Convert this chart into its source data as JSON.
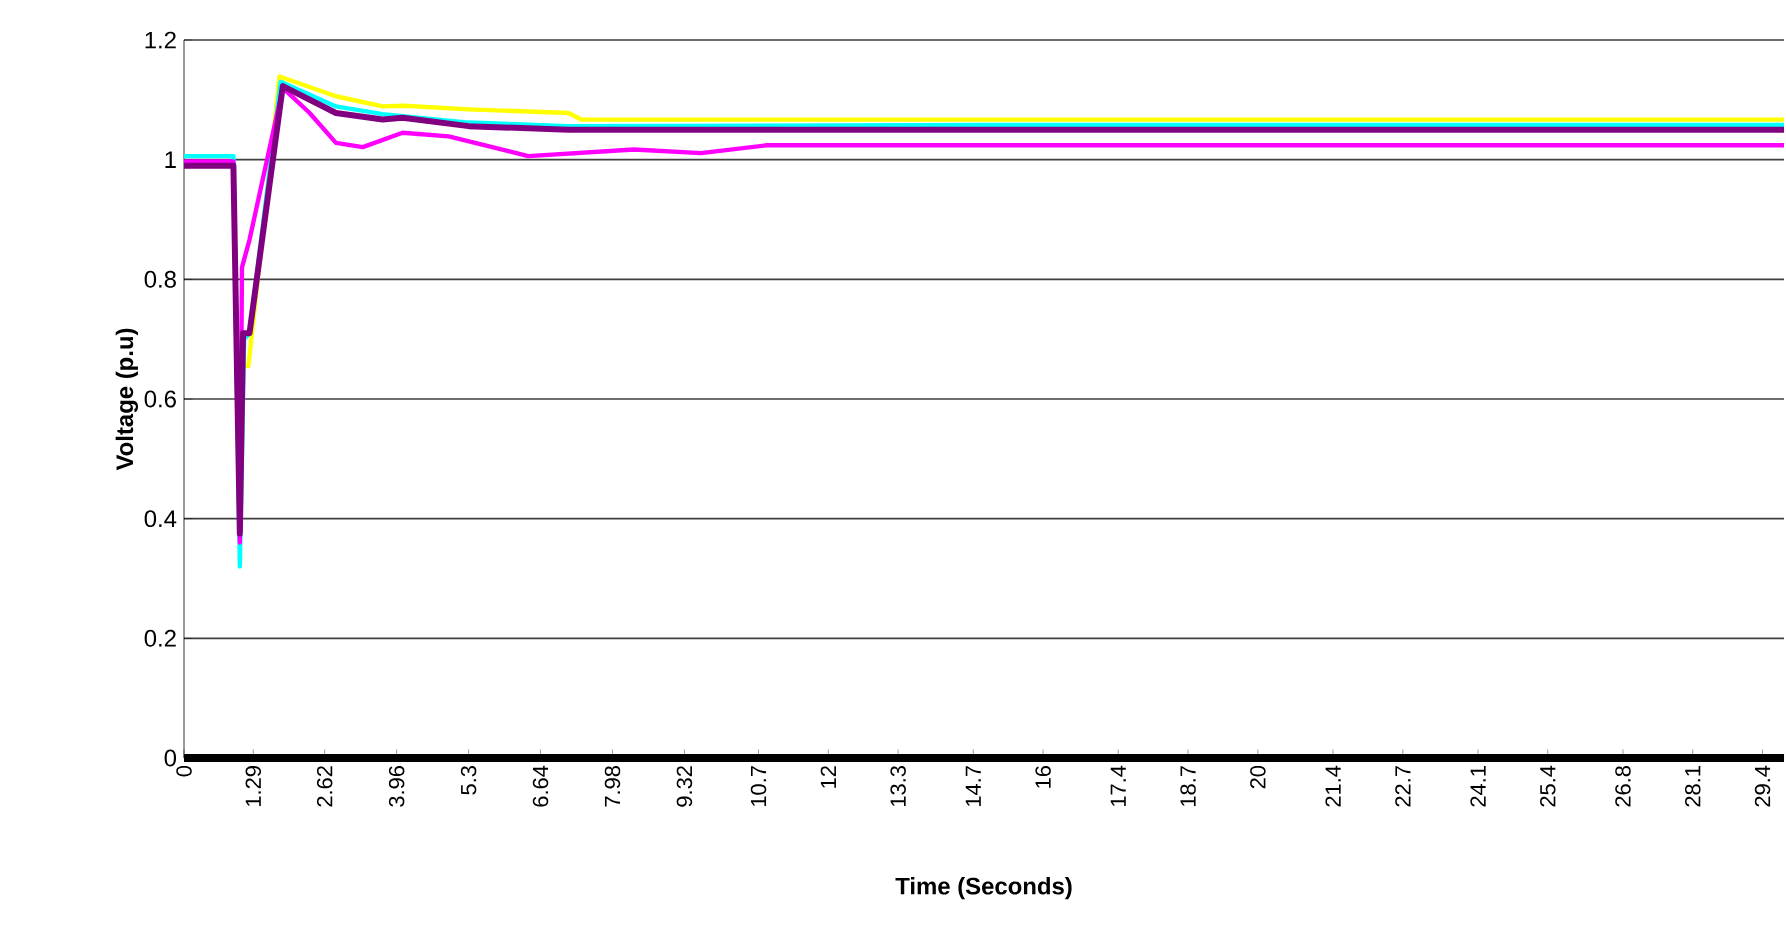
{
  "chart_data": {
    "type": "line",
    "xlabel": "Time (Seconds)",
    "ylabel": "Voltage (p.u)",
    "xlim": [
      0,
      29.8
    ],
    "ylim": [
      0,
      1.2
    ],
    "xticks": [
      0,
      1.29,
      2.62,
      3.96,
      5.3,
      6.64,
      7.98,
      9.32,
      10.7,
      12,
      13.3,
      14.7,
      16,
      17.4,
      18.7,
      20,
      21.4,
      22.7,
      24.1,
      25.4,
      26.8,
      28.1,
      29.4
    ],
    "yticks": [
      0,
      0.2,
      0.4,
      0.6,
      0.8,
      1,
      1.2
    ],
    "grid": "y",
    "marker": "none",
    "line_style": "solid",
    "series": [
      {
        "color": "#ffff00",
        "x": [
          1.12,
          1.2,
          1.78,
          2.83,
          3.7,
          4.1,
          5.3,
          7.16,
          7.4,
          15,
          29.8
        ],
        "values": [
          0.655,
          0.655,
          1.139,
          1.106,
          1.089,
          1.09,
          1.084,
          1.078,
          1.067,
          1.067,
          1.067
        ]
      },
      {
        "color": "#00ffff",
        "x": [
          0,
          0.92,
          1.04,
          1.12,
          1.22,
          1.8,
          2.83,
          3.7,
          5.3,
          7.16,
          15,
          29.8
        ],
        "values": [
          1.006,
          1.006,
          0.32,
          0.7,
          0.71,
          1.13,
          1.089,
          1.076,
          1.062,
          1.056,
          1.058,
          1.058
        ]
      },
      {
        "color": "#ff00ff",
        "x": [
          0,
          0.92,
          1.04,
          1.08,
          1.22,
          1.84,
          2.34,
          2.83,
          3.33,
          4.07,
          4.93,
          6.41,
          8.38,
          9.63,
          10.86,
          20,
          29.8
        ],
        "values": [
          0.997,
          0.997,
          0.36,
          0.82,
          0.866,
          1.12,
          1.078,
          1.028,
          1.021,
          1.045,
          1.039,
          1.006,
          1.017,
          1.011,
          1.024,
          1.024,
          1.024
        ]
      },
      {
        "color": "#800080",
        "x": [
          0,
          0.92,
          1.04,
          1.1,
          1.22,
          1.84,
          2.83,
          3.7,
          4.07,
          5.3,
          7.16,
          15,
          29.8
        ],
        "values": [
          0.99,
          0.99,
          0.375,
          0.71,
          0.71,
          1.123,
          1.078,
          1.067,
          1.07,
          1.056,
          1.05,
          1.05,
          1.05
        ]
      }
    ]
  }
}
